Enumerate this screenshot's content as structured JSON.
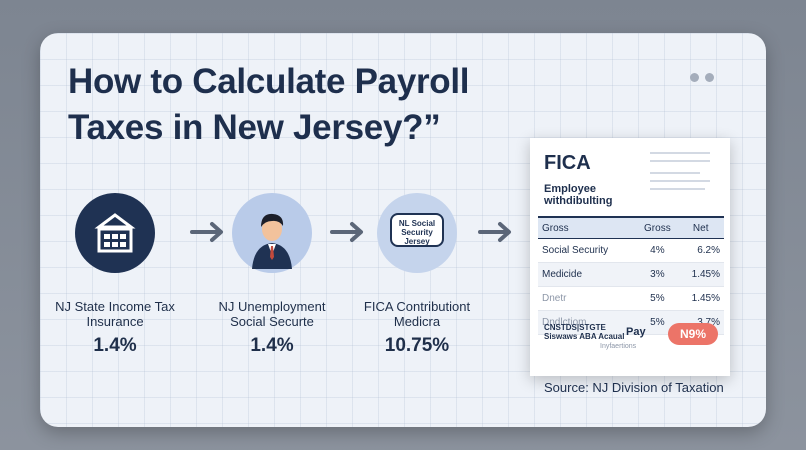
{
  "title": "How to Calculate Payroll Taxes in New Jersey?”",
  "steps": [
    {
      "label_line1": "NJ State Income Tax",
      "label_line2": "Insurance",
      "value": "1.4%",
      "icon": "building-icon"
    },
    {
      "label_line1": "NJ Unemployment",
      "label_line2": "Social Securte",
      "value": "1.4%",
      "icon": "person-icon"
    },
    {
      "label_line1": "FICA Contributiont",
      "label_line2": "Medicra",
      "value": "10.75%",
      "icon": "speech-bubble-icon",
      "bubble_text": "NL Social Security Jersey"
    }
  ],
  "document": {
    "title": "FICA",
    "subtitle_line1": "Employee",
    "subtitle_line2": "withdibulting",
    "table": {
      "headers": [
        "Gross",
        "Gross",
        "Net"
      ],
      "rows": [
        [
          "Social Security",
          "4%",
          "6.2%"
        ],
        [
          "Medicide",
          "3%",
          "1.45%"
        ],
        [
          "Dnetr",
          "5%",
          "1.45%"
        ],
        [
          "Dndlctiom",
          "5%",
          "3.7%"
        ]
      ]
    },
    "footer_text": "CNSTDS|STGTE Siswaws ABA Acaual",
    "footer_pay": "Pay",
    "footer_sub": "Inyfaertions",
    "badge": "N9%"
  },
  "source": "Source: NJ Division of Taxation",
  "colors": {
    "navy": "#1f3253",
    "accent": "#ec7468",
    "background": "#eef2f8"
  }
}
